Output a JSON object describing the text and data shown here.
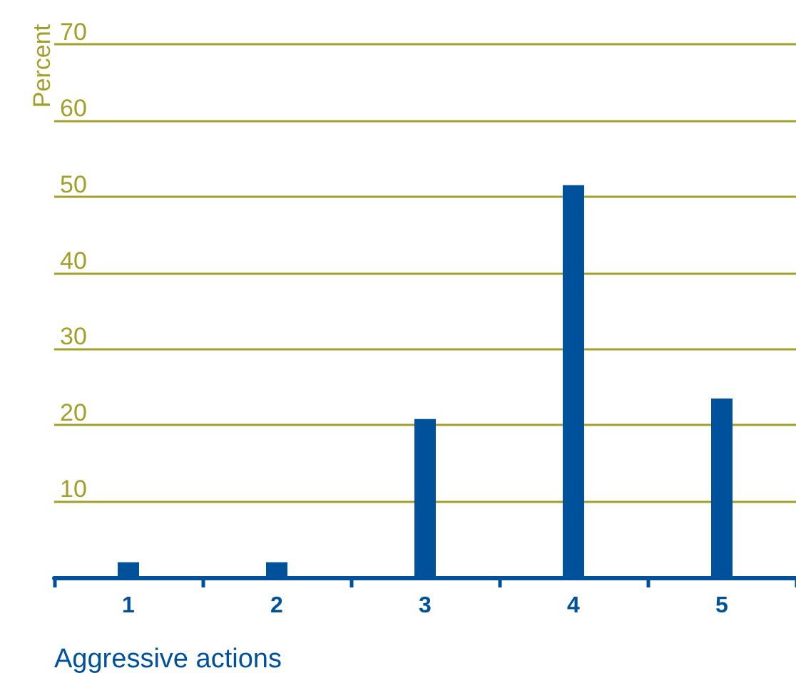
{
  "chart_data": {
    "type": "bar",
    "xlabel": "Aggressive actions",
    "ylabel": "Percent",
    "categories": [
      "1",
      "2",
      "3",
      "4",
      "5"
    ],
    "series": [
      {
        "color": "#00519b",
        "values": [
          2,
          2,
          20.8,
          51.5,
          23.5
        ]
      }
    ],
    "ylim": [
      0,
      70
    ],
    "yticks": [
      {
        "value": 0,
        "label": null
      },
      10,
      20,
      30,
      40,
      50,
      60,
      70
    ],
    "grid": "y"
  }
}
